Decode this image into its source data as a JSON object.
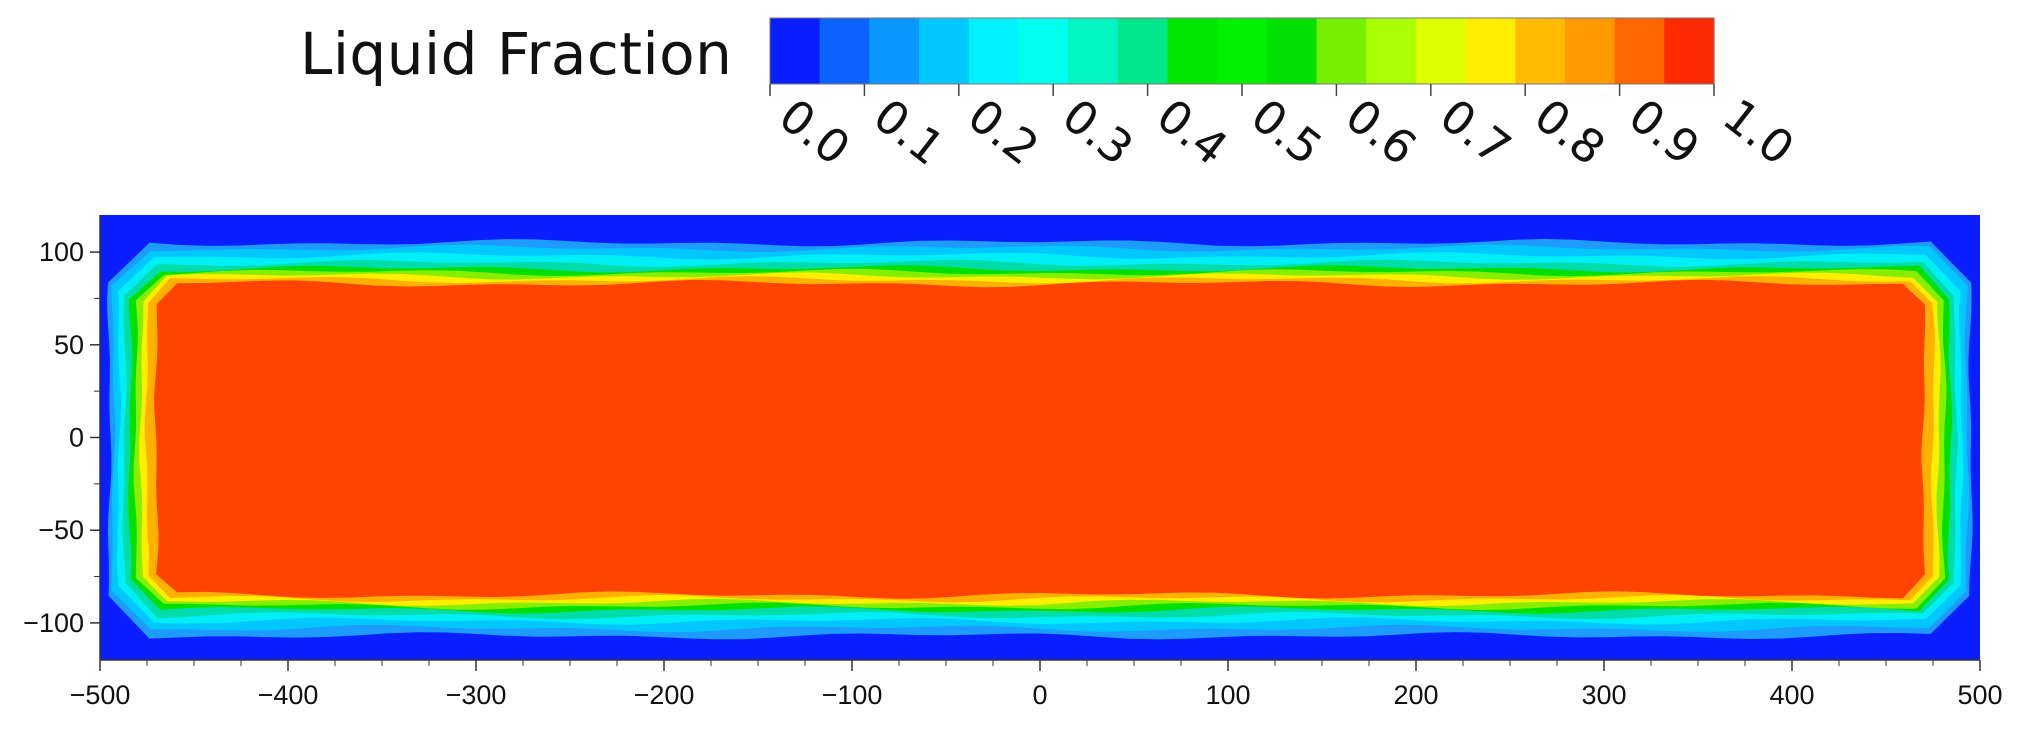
{
  "legend": {
    "title": "Liquid Fraction",
    "ticks": [
      "0.0",
      "0.1",
      "0.2",
      "0.3",
      "0.4",
      "0.5",
      "0.6",
      "0.7",
      "0.8",
      "0.9",
      "1.0"
    ],
    "colors": [
      "#0a1eff",
      "#0a63ff",
      "#0a97ff",
      "#00c8ff",
      "#00f2ff",
      "#00ffee",
      "#00f5c0",
      "#00e68a",
      "#00e600",
      "#00f000",
      "#00e000",
      "#77f000",
      "#aaff00",
      "#ddff00",
      "#ffee00",
      "#ffbb00",
      "#ff9900",
      "#ff6600",
      "#ff2a00"
    ]
  },
  "chart_data": {
    "type": "heatmap",
    "title": "",
    "xlabel": "",
    "ylabel": "",
    "xlim": [
      -500,
      500
    ],
    "ylim": [
      -120,
      120
    ],
    "x_ticks": [
      "−500",
      "−400",
      "−300",
      "−200",
      "−100",
      "0",
      "100",
      "200",
      "300",
      "400",
      "500"
    ],
    "x_tick_values": [
      -500,
      -400,
      -300,
      -200,
      -100,
      0,
      100,
      200,
      300,
      400,
      500
    ],
    "y_ticks": [
      "100",
      "50",
      "0",
      "−50",
      "−100"
    ],
    "y_tick_values": [
      100,
      50,
      0,
      -50,
      -100
    ],
    "colorbar_range": [
      0.0,
      1.0
    ],
    "background_value": 0.0,
    "contours": [
      {
        "level": 0.1,
        "color": "#1e9bff",
        "x": [
          -495,
          495
        ],
        "y": [
          -107,
          105
        ]
      },
      {
        "level": 0.2,
        "color": "#00c8ff",
        "x": [
          -493,
          493
        ],
        "y": [
          -103,
          102
        ]
      },
      {
        "level": 0.3,
        "color": "#00eef5",
        "x": [
          -490,
          490
        ],
        "y": [
          -99,
          98
        ]
      },
      {
        "level": 0.5,
        "color": "#00ddaa",
        "x": [
          -487,
          487
        ],
        "y": [
          -96,
          94
        ]
      },
      {
        "level": 0.6,
        "color": "#00e000",
        "x": [
          -484,
          484
        ],
        "y": [
          -93,
          91
        ]
      },
      {
        "level": 0.7,
        "color": "#88ee00",
        "x": [
          -481,
          481
        ],
        "y": [
          -91,
          89
        ]
      },
      {
        "level": 0.8,
        "color": "#ffee00",
        "x": [
          -478,
          478
        ],
        "y": [
          -89,
          87
        ]
      },
      {
        "level": 0.9,
        "color": "#ffb000",
        "x": [
          -475,
          475
        ],
        "y": [
          -87,
          85
        ]
      },
      {
        "level": 1.0,
        "color": "#ff4300",
        "x": [
          -470,
          470
        ],
        "y": [
          -85,
          83
        ]
      }
    ]
  }
}
